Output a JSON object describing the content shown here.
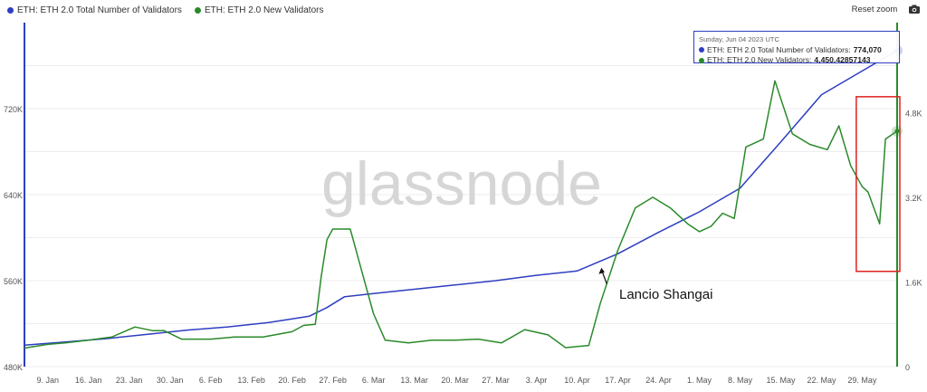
{
  "legend": {
    "items": [
      {
        "label": "ETH: ETH 2.0 Total Number of Validators",
        "color": "#2e3ec0"
      },
      {
        "label": "ETH: ETH 2.0 New Validators",
        "color": "#2a8a2a"
      }
    ]
  },
  "toolbar": {
    "reset_zoom_label": "Reset zoom",
    "camera_icon": "camera-icon"
  },
  "watermark": "glassnode",
  "tooltip": {
    "date": "Sunday, Jun 04 2023 UTC",
    "rows": [
      {
        "label": "ETH: ETH 2.0 Total Number of Validators:",
        "value": "774,070",
        "color": "#2e3ec0"
      },
      {
        "label": "ETH: ETH 2.0 New Validators:",
        "value": "4,450.42857143",
        "color": "#2a8a2a"
      }
    ]
  },
  "annotation": {
    "text": "Lancio Shangai"
  },
  "colors": {
    "total": "#2e3ec0",
    "new": "#2a8a2a",
    "highlight_box": "#e02020"
  },
  "chart_data": {
    "type": "line",
    "x_tick_labels": [
      "9. Jan",
      "16. Jan",
      "23. Jan",
      "30. Jan",
      "6. Feb",
      "13. Feb",
      "20. Feb",
      "27. Feb",
      "6. Mar",
      "13. Mar",
      "20. Mar",
      "27. Mar",
      "3. Apr",
      "10. Apr",
      "17. Apr",
      "24. Apr",
      "1. May",
      "8. May",
      "15. May",
      "22. May",
      "29. May"
    ],
    "x_range": [
      "2023-01-05",
      "2023-06-04"
    ],
    "y_left": {
      "ticks": [
        "480K",
        "560K",
        "640K",
        "720K"
      ],
      "tick_values": [
        480000,
        560000,
        640000,
        720000
      ],
      "range": [
        480000,
        800000
      ]
    },
    "y_right": {
      "ticks": [
        "0",
        "1.6K",
        "3.2K",
        "4.8K"
      ],
      "tick_values": [
        0,
        1600,
        3200,
        4800
      ],
      "range": [
        0,
        6500
      ]
    },
    "series": [
      {
        "name": "ETH: ETH 2.0 Total Number of Validators",
        "axis": "left",
        "points": [
          [
            "2023-01-05",
            500000
          ],
          [
            "2023-01-12",
            503000
          ],
          [
            "2023-01-19",
            506000
          ],
          [
            "2023-01-26",
            510000
          ],
          [
            "2023-02-02",
            514000
          ],
          [
            "2023-02-09",
            517000
          ],
          [
            "2023-02-16",
            521000
          ],
          [
            "2023-02-23",
            527000
          ],
          [
            "2023-02-26",
            535000
          ],
          [
            "2023-03-01",
            545000
          ],
          [
            "2023-03-06",
            548000
          ],
          [
            "2023-03-13",
            552000
          ],
          [
            "2023-03-20",
            556000
          ],
          [
            "2023-03-27",
            560000
          ],
          [
            "2023-04-03",
            565000
          ],
          [
            "2023-04-10",
            569000
          ],
          [
            "2023-04-17",
            585000
          ],
          [
            "2023-04-24",
            605000
          ],
          [
            "2023-05-01",
            624000
          ],
          [
            "2023-05-08",
            646000
          ],
          [
            "2023-05-15",
            689000
          ],
          [
            "2023-05-22",
            733000
          ],
          [
            "2023-05-29",
            755000
          ],
          [
            "2023-06-04",
            774070
          ]
        ]
      },
      {
        "name": "ETH: ETH 2.0 New Validators",
        "axis": "right",
        "points": [
          [
            "2023-01-05",
            350
          ],
          [
            "2023-01-09",
            420
          ],
          [
            "2023-01-12",
            450
          ],
          [
            "2023-01-16",
            500
          ],
          [
            "2023-01-20",
            560
          ],
          [
            "2023-01-24",
            750
          ],
          [
            "2023-01-27",
            680
          ],
          [
            "2023-01-29",
            680
          ],
          [
            "2023-02-01",
            520
          ],
          [
            "2023-02-06",
            520
          ],
          [
            "2023-02-10",
            560
          ],
          [
            "2023-02-15",
            560
          ],
          [
            "2023-02-20",
            660
          ],
          [
            "2023-02-22",
            780
          ],
          [
            "2023-02-24",
            800
          ],
          [
            "2023-02-25",
            1700
          ],
          [
            "2023-02-26",
            2400
          ],
          [
            "2023-02-27",
            2600
          ],
          [
            "2023-03-02",
            2600
          ],
          [
            "2023-03-04",
            1800
          ],
          [
            "2023-03-06",
            1000
          ],
          [
            "2023-03-08",
            500
          ],
          [
            "2023-03-12",
            450
          ],
          [
            "2023-03-16",
            500
          ],
          [
            "2023-03-20",
            500
          ],
          [
            "2023-03-24",
            520
          ],
          [
            "2023-03-28",
            450
          ],
          [
            "2023-04-01",
            700
          ],
          [
            "2023-04-05",
            600
          ],
          [
            "2023-04-08",
            360
          ],
          [
            "2023-04-12",
            400
          ],
          [
            "2023-04-14",
            1200
          ],
          [
            "2023-04-17",
            2200
          ],
          [
            "2023-04-20",
            3000
          ],
          [
            "2023-04-23",
            3200
          ],
          [
            "2023-04-26",
            3000
          ],
          [
            "2023-04-29",
            2700
          ],
          [
            "2023-05-01",
            2550
          ],
          [
            "2023-05-03",
            2650
          ],
          [
            "2023-05-05",
            2900
          ],
          [
            "2023-05-07",
            2800
          ],
          [
            "2023-05-09",
            4150
          ],
          [
            "2023-05-12",
            4300
          ],
          [
            "2023-05-14",
            5400
          ],
          [
            "2023-05-17",
            4400
          ],
          [
            "2023-05-20",
            4200
          ],
          [
            "2023-05-23",
            4100
          ],
          [
            "2023-05-25",
            4550
          ],
          [
            "2023-05-27",
            3800
          ],
          [
            "2023-05-29",
            3400
          ],
          [
            "2023-05-30",
            3300
          ],
          [
            "2023-06-01",
            2700
          ],
          [
            "2023-06-02",
            4300
          ],
          [
            "2023-06-04",
            4450.43
          ]
        ]
      }
    ],
    "highlight_range": [
      "2023-05-30",
      "2023-06-04"
    ],
    "shapella_date": "2023-04-12"
  }
}
